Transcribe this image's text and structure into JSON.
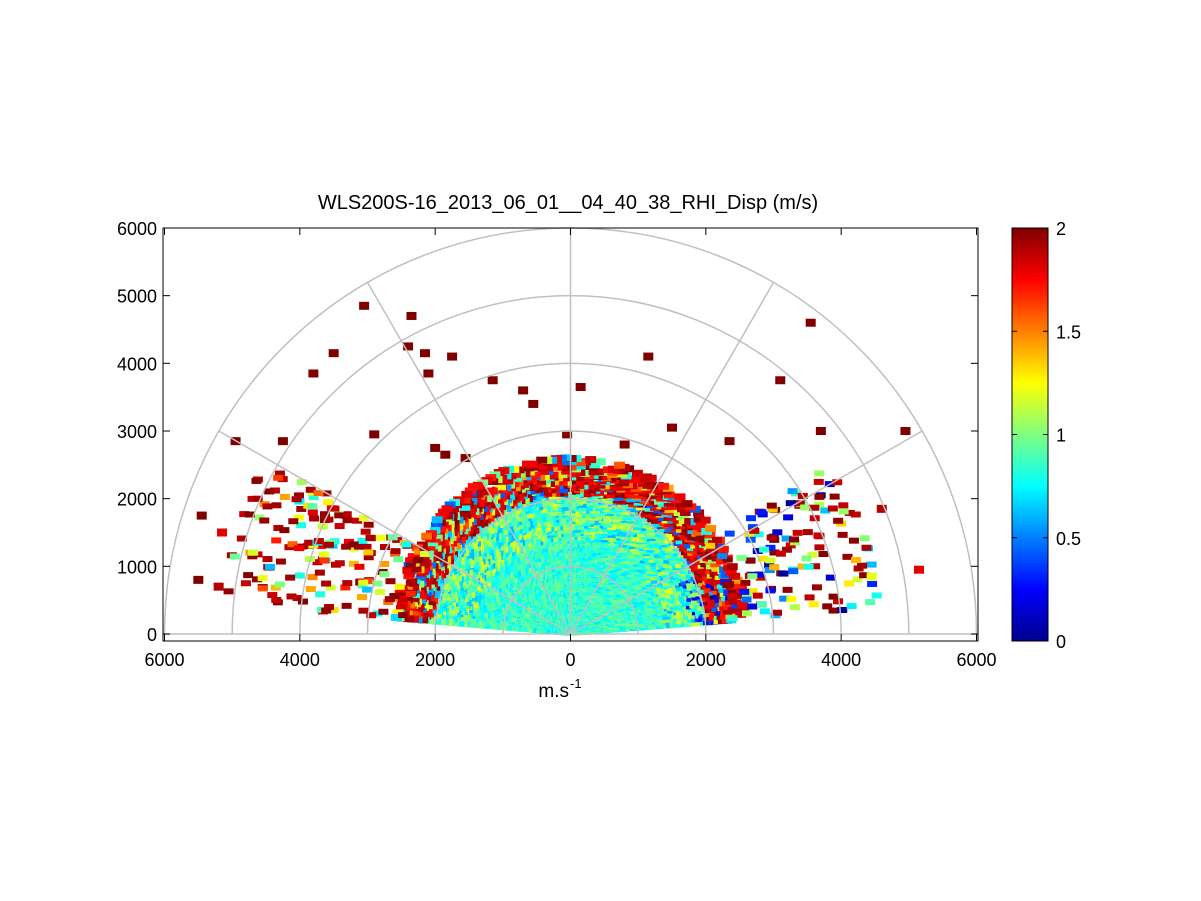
{
  "chart_data": {
    "type": "heatmap",
    "subtype": "polar-rhi",
    "title": "WLS200S-16_2013_06_01__04_40_38_RHI_Disp (m/s)",
    "xlabel": "m.s",
    "xlabel_sup": "-1",
    "ylabel": "",
    "xlim": [
      -6000,
      6000
    ],
    "ylim": [
      0,
      6000
    ],
    "x_ticks": [
      -6000,
      -4000,
      -2000,
      0,
      2000,
      4000,
      6000
    ],
    "x_tick_labels": [
      "6000",
      "4000",
      "2000",
      "0",
      "2000",
      "4000",
      "6000"
    ],
    "y_ticks": [
      0,
      1000,
      2000,
      3000,
      4000,
      5000,
      6000
    ],
    "y_tick_labels": [
      "0",
      "1000",
      "2000",
      "3000",
      "4000",
      "5000",
      "6000"
    ],
    "polar_rings": [
      1000,
      2000,
      3000,
      4000,
      5000,
      6000
    ],
    "polar_spokes_deg": [
      0,
      30,
      60,
      90,
      120,
      150,
      180
    ],
    "colorbar": {
      "min": 0,
      "max": 2,
      "ticks": [
        0,
        0.5,
        1,
        1.5,
        2
      ],
      "tick_labels": [
        "0",
        "0.5",
        "1",
        "1.5",
        "2"
      ],
      "colormap": "jet"
    },
    "data_extent": {
      "elevation_range_deg": [
        5,
        175
      ],
      "dense_range_max_m": 2600,
      "scattered_range_max_m": 5800
    },
    "scatter_points": [
      {
        "x": -5450,
        "y": 1750,
        "v": 2
      },
      {
        "x": -5500,
        "y": 800,
        "v": 2
      },
      {
        "x": -5200,
        "y": 700,
        "v": 1.9
      },
      {
        "x": -5150,
        "y": 1500,
        "v": 1.8
      },
      {
        "x": -4950,
        "y": 2850,
        "v": 2
      },
      {
        "x": -4250,
        "y": 2850,
        "v": 2
      },
      {
        "x": -3800,
        "y": 3850,
        "v": 2
      },
      {
        "x": -3500,
        "y": 4150,
        "v": 2
      },
      {
        "x": -3050,
        "y": 4850,
        "v": 2
      },
      {
        "x": -2900,
        "y": 2950,
        "v": 2
      },
      {
        "x": -2350,
        "y": 4700,
        "v": 2
      },
      {
        "x": -2400,
        "y": 4250,
        "v": 2
      },
      {
        "x": -2150,
        "y": 4150,
        "v": 2
      },
      {
        "x": -2100,
        "y": 3850,
        "v": 2
      },
      {
        "x": -1750,
        "y": 4100,
        "v": 2
      },
      {
        "x": -1150,
        "y": 3750,
        "v": 2
      },
      {
        "x": -700,
        "y": 3600,
        "v": 2
      },
      {
        "x": -550,
        "y": 3400,
        "v": 2
      },
      {
        "x": -2000,
        "y": 2750,
        "v": 2
      },
      {
        "x": -1850,
        "y": 2650,
        "v": 2
      },
      {
        "x": -1550,
        "y": 2600,
        "v": 2
      },
      {
        "x": -50,
        "y": 2950,
        "v": 2
      },
      {
        "x": 150,
        "y": 3650,
        "v": 2
      },
      {
        "x": 1150,
        "y": 4100,
        "v": 2
      },
      {
        "x": 800,
        "y": 2800,
        "v": 2
      },
      {
        "x": 1500,
        "y": 3050,
        "v": 2
      },
      {
        "x": 2350,
        "y": 2850,
        "v": 2
      },
      {
        "x": 3100,
        "y": 3750,
        "v": 2
      },
      {
        "x": 3550,
        "y": 4600,
        "v": 2
      },
      {
        "x": 3700,
        "y": 3000,
        "v": 2
      },
      {
        "x": 4950,
        "y": 3000,
        "v": 2
      },
      {
        "x": 4600,
        "y": 1850,
        "v": 1.9
      },
      {
        "x": 5150,
        "y": 950,
        "v": 1.8
      },
      {
        "x": 4450,
        "y": 850,
        "v": 1.2
      }
    ]
  }
}
